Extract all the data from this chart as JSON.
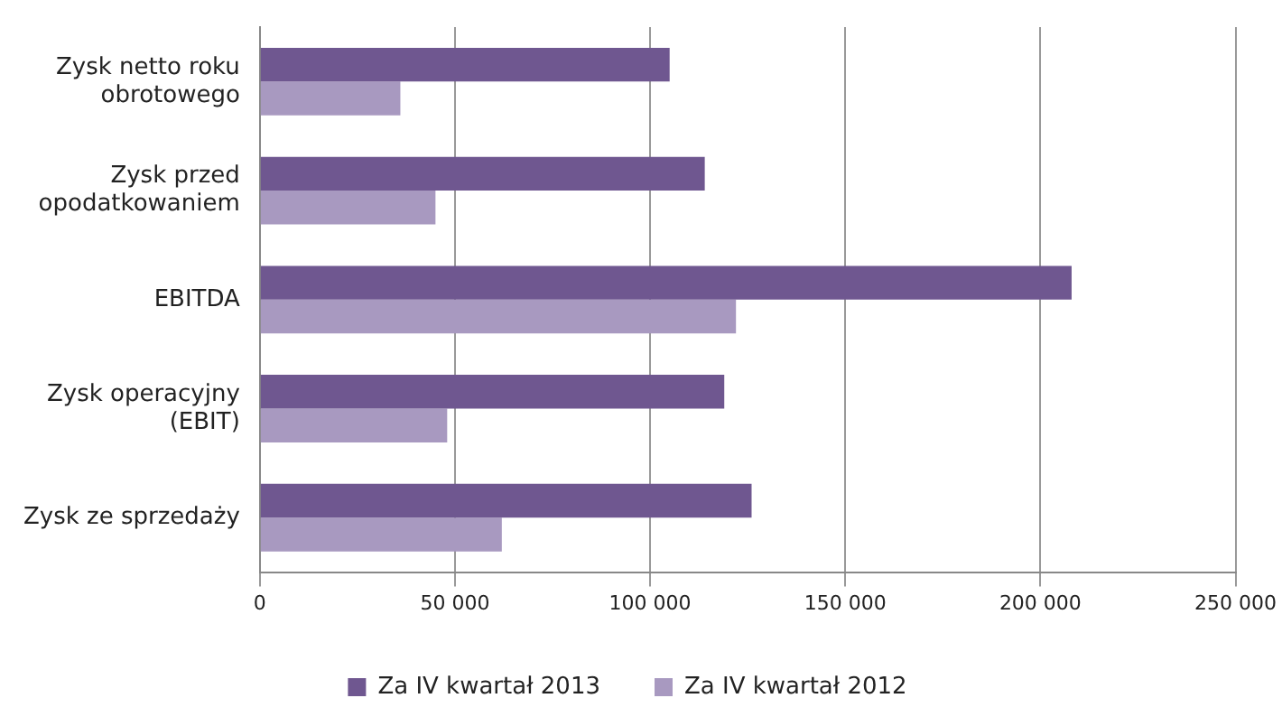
{
  "chart_data": {
    "type": "bar",
    "orientation": "horizontal",
    "categories": [
      "Zysk netto roku obrotowego",
      "Zysk przed opodatkowaniem",
      "EBITDA",
      "Zysk operacyjny (EBIT)",
      "Zysk ze sprzedaży"
    ],
    "series": [
      {
        "name": "Za IV kwartał 2013",
        "color": "#6f5790",
        "values": [
          105000,
          114000,
          208000,
          119000,
          126000
        ]
      },
      {
        "name": "Za IV kwartał 2012",
        "color": "#a899c0",
        "values": [
          36000,
          45000,
          122000,
          48000,
          62000
        ]
      }
    ],
    "xlim": [
      0,
      250000
    ],
    "xticks": [
      0,
      {
        "value": 50000,
        "label": "50 000"
      },
      {
        "value": 100000,
        "label": "100 000"
      },
      {
        "value": 150000,
        "label": "150 000"
      },
      {
        "value": 200000,
        "label": "200 000"
      },
      {
        "value": 250000,
        "label": "250 000"
      }
    ],
    "grid": "x",
    "legend": "bottom"
  }
}
